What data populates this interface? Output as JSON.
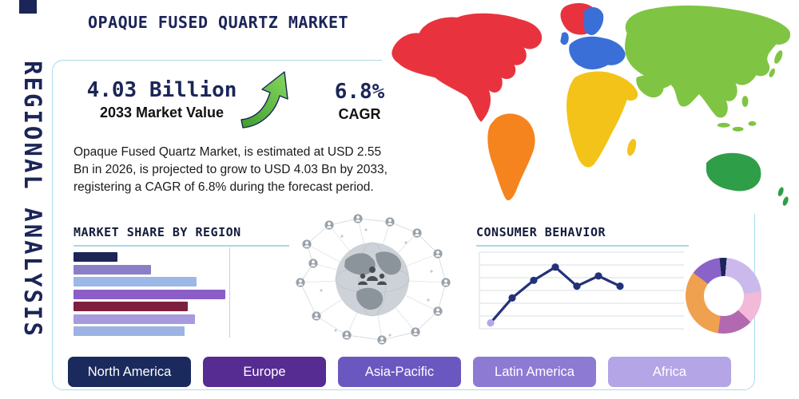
{
  "page": {
    "title": "OPAQUE FUSED QUARTZ MARKET",
    "vertical_label": "REGIONAL ANALYSIS"
  },
  "stats": {
    "market_value": "4.03 Billion",
    "market_value_label": "2033 Market Value",
    "cagr_value": "6.8%",
    "cagr_label": "CAGR"
  },
  "description": "Opaque Fused Quartz Market, is estimated at USD 2.55 Bn in 2026, is projected to grow to USD 4.03 Bn by 2033, registering a CAGR of 6.8% during the forecast period.",
  "sections": {
    "market_share_title": "MARKET SHARE BY REGION",
    "consumer_behavior_title": "CONSUMER BEHAVIOR"
  },
  "region_buttons": [
    {
      "label": "North America",
      "color": "#1b2a5c"
    },
    {
      "label": "Europe",
      "color": "#562b92"
    },
    {
      "label": "Asia-Pacific",
      "color": "#6a58c0"
    },
    {
      "label": "Latin America",
      "color": "#8d7ad2"
    },
    {
      "label": "Africa",
      "color": "#b4a5e6"
    }
  ],
  "chart_data": [
    {
      "type": "bar",
      "title": "MARKET SHARE BY REGION",
      "orientation": "horizontal",
      "values_unit": "percent_of_longest_bar",
      "values": [
        29,
        51,
        81,
        100,
        75,
        80,
        73
      ],
      "colors": [
        "#1b2558",
        "#8a7fc7",
        "#9db7e6",
        "#8a5ec6",
        "#7d1f3f",
        "#a79ade",
        "#9cb3e4"
      ]
    },
    {
      "type": "line",
      "title": "CONSUMER BEHAVIOR",
      "x": [
        1,
        2,
        3,
        4,
        5,
        6,
        7
      ],
      "y": [
        8,
        42,
        66,
        84,
        58,
        72,
        58
      ],
      "y_unit": "percent_of_plot_height",
      "line_color": "#23317a",
      "first_marker_color": "#b4a6e8",
      "grid": true,
      "legend": false
    },
    {
      "type": "pie",
      "donut": true,
      "slices": [
        {
          "color": "#1b2558",
          "value": 3
        },
        {
          "color": "#cbb9ec",
          "value": 22
        },
        {
          "color": "#f2b9d9",
          "value": 14
        },
        {
          "color": "#b369b0",
          "value": 15
        },
        {
          "color": "#f0a14f",
          "value": 33
        },
        {
          "color": "#8a63c9",
          "value": 13
        }
      ]
    }
  ],
  "map": {
    "continents": [
      {
        "name": "north-america",
        "color": "#e8333f"
      },
      {
        "name": "south-america",
        "color": "#f5841f"
      },
      {
        "name": "europe",
        "color": "#3a6fd8"
      },
      {
        "name": "africa",
        "color": "#f4c319"
      },
      {
        "name": "asia",
        "color": "#7fc543"
      },
      {
        "name": "australia",
        "color": "#2f9e49"
      }
    ]
  },
  "theme": {
    "navy": "#1b2558",
    "line_blue": "#a8d8ea",
    "box_border": "#aadcec",
    "text": "#1a1a1a",
    "arrow_green": "#5cbb40",
    "grid": "#d8dde3"
  }
}
